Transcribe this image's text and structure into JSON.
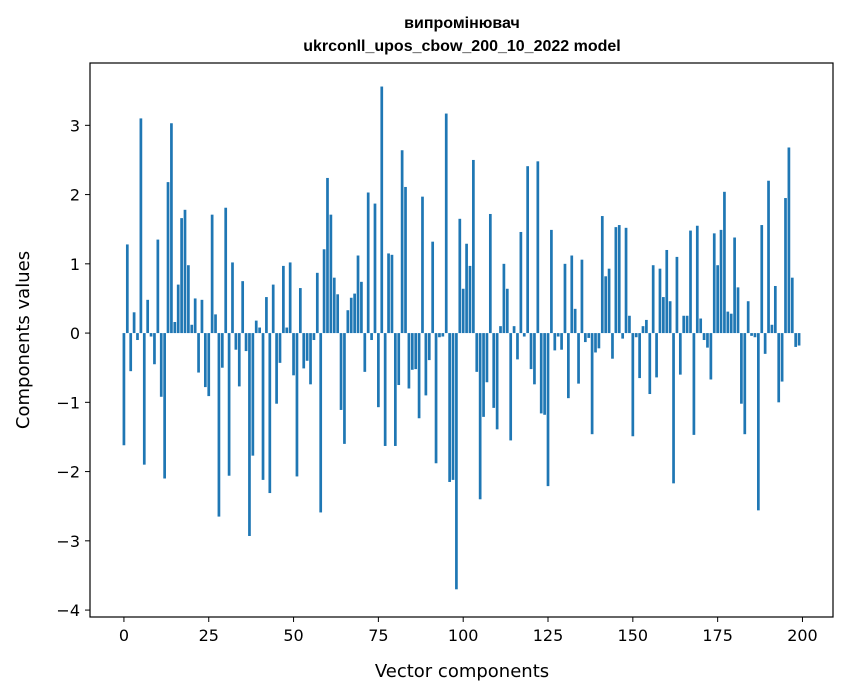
{
  "chart_data": {
    "type": "bar",
    "title": "випромінювач",
    "subtitle": "ukrconll_upos_cbow_200_10_2022 model",
    "xlabel": "Vector components",
    "ylabel": "Components values",
    "xlim": [
      -10,
      209
    ],
    "ylim": [
      -4.1,
      3.9
    ],
    "xticks": [
      0,
      25,
      50,
      75,
      100,
      125,
      150,
      175,
      200
    ],
    "yticks": [
      -4,
      -3,
      -2,
      -1,
      0,
      1,
      2,
      3
    ],
    "ytick_labels": [
      "−4",
      "−3",
      "−2",
      "−1",
      "0",
      "1",
      "2",
      "3"
    ],
    "grid": false,
    "bar_color": "#1f77b4",
    "x": [
      0,
      1,
      2,
      3,
      4,
      5,
      6,
      7,
      8,
      9,
      10,
      11,
      12,
      13,
      14,
      15,
      16,
      17,
      18,
      19,
      20,
      21,
      22,
      23,
      24,
      25,
      26,
      27,
      28,
      29,
      30,
      31,
      32,
      33,
      34,
      35,
      36,
      37,
      38,
      39,
      40,
      41,
      42,
      43,
      44,
      45,
      46,
      47,
      48,
      49,
      50,
      51,
      52,
      53,
      54,
      55,
      56,
      57,
      58,
      59,
      60,
      61,
      62,
      63,
      64,
      65,
      66,
      67,
      68,
      69,
      70,
      71,
      72,
      73,
      74,
      75,
      76,
      77,
      78,
      79,
      80,
      81,
      82,
      83,
      84,
      85,
      86,
      87,
      88,
      89,
      90,
      91,
      92,
      93,
      94,
      95,
      96,
      97,
      98,
      99,
      100,
      101,
      102,
      103,
      104,
      105,
      106,
      107,
      108,
      109,
      110,
      111,
      112,
      113,
      114,
      115,
      116,
      117,
      118,
      119,
      120,
      121,
      122,
      123,
      124,
      125,
      126,
      127,
      128,
      129,
      130,
      131,
      132,
      133,
      134,
      135,
      136,
      137,
      138,
      139,
      140,
      141,
      142,
      143,
      144,
      145,
      146,
      147,
      148,
      149,
      150,
      151,
      152,
      153,
      154,
      155,
      156,
      157,
      158,
      159,
      160,
      161,
      162,
      163,
      164,
      165,
      166,
      167,
      168,
      169,
      170,
      171,
      172,
      173,
      174,
      175,
      176,
      177,
      178,
      179,
      180,
      181,
      182,
      183,
      184,
      185,
      186,
      187,
      188,
      189,
      190,
      191,
      192,
      193,
      194,
      195,
      196,
      197,
      198,
      199
    ],
    "values": [
      -1.62,
      1.28,
      -0.55,
      0.3,
      -0.1,
      3.1,
      -1.9,
      0.48,
      -0.05,
      -0.45,
      1.35,
      -0.92,
      -2.1,
      2.18,
      3.03,
      0.16,
      0.7,
      1.66,
      1.78,
      0.98,
      0.12,
      0.5,
      -0.57,
      0.48,
      -0.78,
      -0.91,
      1.71,
      0.27,
      -2.65,
      -0.5,
      1.81,
      -2.06,
      1.02,
      -0.24,
      -0.77,
      0.75,
      -0.26,
      -2.93,
      -1.77,
      0.18,
      0.08,
      -2.12,
      0.52,
      -2.31,
      0.7,
      -1.02,
      -0.43,
      0.97,
      0.08,
      1.02,
      -0.61,
      -2.07,
      0.65,
      -0.51,
      -0.4,
      -0.74,
      -0.1,
      0.87,
      -2.59,
      1.21,
      2.24,
      1.71,
      0.8,
      0.56,
      -1.11,
      -1.6,
      0.33,
      0.51,
      0.57,
      1.12,
      0.74,
      -0.56,
      2.03,
      -0.1,
      1.87,
      -1.07,
      3.56,
      -1.63,
      1.15,
      1.13,
      -1.63,
      -0.75,
      2.64,
      2.11,
      -0.8,
      -0.53,
      -0.52,
      -1.23,
      1.97,
      -0.9,
      -0.39,
      1.32,
      -1.88,
      -0.06,
      -0.05,
      3.17,
      -2.15,
      -2.12,
      -3.7,
      1.65,
      0.64,
      1.29,
      0.97,
      2.5,
      -0.56,
      -2.4,
      -1.21,
      -0.71,
      1.72,
      -1.08,
      -1.39,
      0.1,
      1.0,
      0.64,
      -1.55,
      0.1,
      -0.38,
      1.46,
      -0.05,
      2.41,
      -0.52,
      -0.74,
      2.48,
      -1.16,
      -1.18,
      -2.21,
      1.49,
      -0.25,
      -0.05,
      -0.24,
      1.0,
      -0.94,
      1.12,
      0.35,
      -0.73,
      1.06,
      -0.13,
      -0.07,
      -1.46,
      -0.28,
      -0.22,
      1.69,
      0.82,
      0.93,
      -0.37,
      1.53,
      1.56,
      -0.08,
      1.52,
      0.25,
      -1.49,
      -0.06,
      -0.65,
      0.1,
      0.19,
      -0.88,
      0.98,
      -0.64,
      0.93,
      0.52,
      1.2,
      0.46,
      -2.17,
      1.1,
      -0.6,
      0.25,
      0.25,
      1.48,
      -1.47,
      1.55,
      0.21,
      -0.1,
      -0.21,
      -0.67,
      1.44,
      0.98,
      1.49,
      2.04,
      0.31,
      0.28,
      1.38,
      0.66,
      -1.02,
      -1.46,
      0.46,
      -0.04,
      -0.06,
      -2.56,
      1.56,
      -0.3,
      2.2,
      0.12,
      0.68,
      -1.0,
      -0.7,
      1.95,
      2.68,
      0.8,
      -0.2,
      -0.18
    ]
  }
}
